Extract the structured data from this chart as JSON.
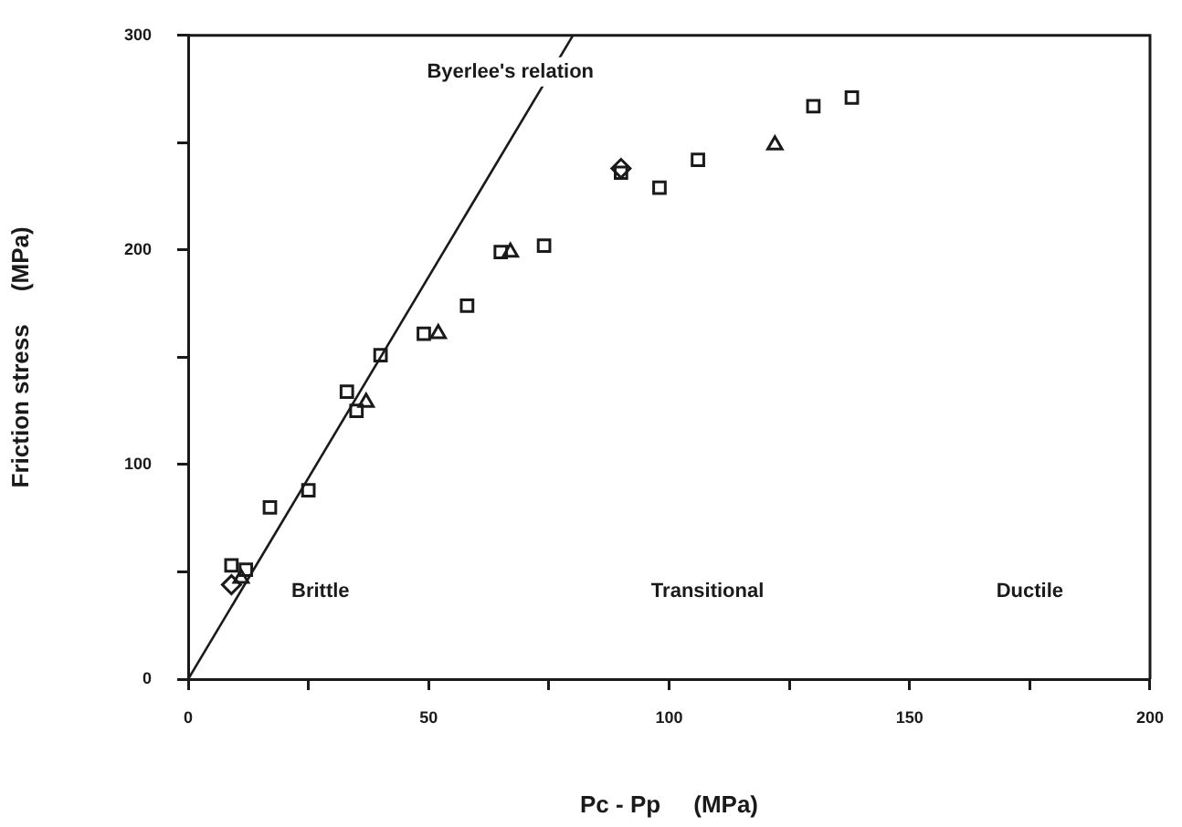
{
  "chart_data": {
    "type": "scatter",
    "xlabel": "Pc - Pp     (MPa)",
    "ylabel": "Friction stress     (MPa)",
    "xlim": [
      0,
      200
    ],
    "ylim": [
      0,
      300
    ],
    "xticks": [
      0,
      {
        "value": 25,
        "label": null
      },
      50,
      {
        "value": 75,
        "label": null
      },
      100,
      {
        "value": 125,
        "label": null
      },
      150,
      {
        "value": 175,
        "label": null
      },
      200
    ],
    "yticks": [
      0,
      {
        "value": 50,
        "label": null
      },
      100,
      {
        "value": 150,
        "label": null
      },
      200,
      {
        "value": 250,
        "label": null
      },
      300
    ],
    "grid": false,
    "legend": false,
    "annotations": [
      "Byerlee's relation",
      "Brittle",
      "Transitional",
      "Ductile"
    ],
    "series": [
      {
        "type": "line",
        "color": "#1a1a1a",
        "x": [
          0,
          80
        ],
        "values": [
          0,
          300
        ],
        "marker": "none"
      },
      {
        "type": "scatter",
        "color": "#1a1a1a",
        "marker": "square",
        "x": [
          9,
          12,
          17,
          25,
          33,
          35,
          40,
          49,
          58,
          65,
          74,
          90,
          98,
          106,
          130,
          138
        ],
        "values": [
          53,
          51,
          80,
          88,
          134,
          125,
          151,
          161,
          174,
          199,
          202,
          236,
          229,
          242,
          267,
          271
        ]
      },
      {
        "type": "scatter",
        "color": "#1a1a1a",
        "marker": "triangle",
        "x": [
          11,
          37,
          52,
          67,
          122
        ],
        "values": [
          47,
          129,
          161,
          199,
          249
        ]
      },
      {
        "type": "scatter",
        "color": "#1a1a1a",
        "marker": "diamond",
        "x": [
          9,
          90
        ],
        "values": [
          44,
          238
        ]
      }
    ]
  }
}
